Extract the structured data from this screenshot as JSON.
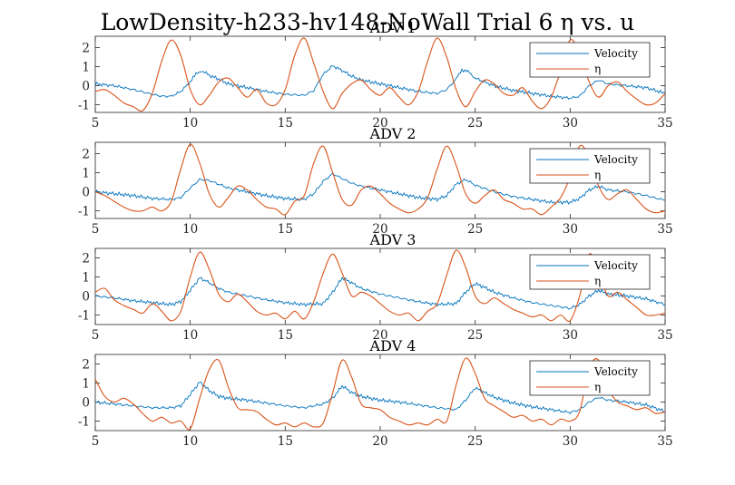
{
  "figure": {
    "title": "LowDensity-h233-hv148-NoWall Trial 6 η vs. u"
  },
  "colors": {
    "velocity": "#0072BD",
    "eta": "#D95319",
    "axis": "#262626"
  },
  "chart_data": [
    {
      "type": "line",
      "title": "ADV 1",
      "xlim": [
        5,
        35
      ],
      "ylim": [
        -1.4,
        2.6
      ],
      "xticks": [
        5,
        10,
        15,
        20,
        25,
        30,
        35
      ],
      "yticks": [
        -1,
        0,
        1,
        2
      ],
      "legend": {
        "placement": "top-right",
        "entries": [
          "Velocity",
          "η"
        ]
      },
      "series": [
        {
          "name": "Velocity",
          "x": [
            5,
            6,
            7,
            8,
            8.5,
            9,
            9.5,
            10,
            10.3,
            10.6,
            11,
            11.5,
            12,
            13,
            14,
            15,
            16,
            16.5,
            17,
            17.5,
            18,
            18.5,
            19,
            20,
            21,
            22,
            23,
            23.5,
            24,
            24.3,
            24.7,
            25,
            26,
            27,
            28,
            29,
            30,
            30.5,
            31,
            31.5,
            32,
            33,
            34,
            35
          ],
          "y": [
            0.1,
            0.0,
            -0.2,
            -0.45,
            -0.55,
            -0.55,
            -0.3,
            0.2,
            0.6,
            0.8,
            0.55,
            0.35,
            0.1,
            -0.1,
            -0.3,
            -0.45,
            -0.5,
            -0.25,
            0.6,
            1.05,
            0.8,
            0.5,
            0.3,
            0.1,
            -0.1,
            -0.3,
            -0.4,
            -0.2,
            0.35,
            0.85,
            0.7,
            0.4,
            0.0,
            -0.25,
            -0.4,
            -0.55,
            -0.65,
            -0.55,
            0.0,
            0.3,
            0.1,
            0.0,
            -0.1,
            -0.4
          ]
        },
        {
          "name": "η",
          "x": [
            5,
            5.5,
            6,
            6.5,
            7,
            7.5,
            8,
            8.5,
            9,
            9.5,
            10,
            10.5,
            11,
            11.5,
            12,
            12.5,
            13,
            13.5,
            14,
            14.5,
            15,
            15.5,
            16,
            16.5,
            17,
            17.5,
            18,
            18.5,
            19,
            19.5,
            20,
            20.5,
            21,
            21.5,
            22,
            22.5,
            23,
            23.5,
            24,
            24.5,
            25,
            25.5,
            26,
            26.5,
            27,
            27.5,
            28,
            28.5,
            29,
            29.5,
            30,
            30.5,
            31,
            31.5,
            32,
            32.5,
            33,
            33.5,
            34,
            34.5,
            35
          ],
          "y": [
            -0.3,
            -0.2,
            -0.5,
            -0.9,
            -1.1,
            -1.3,
            -0.4,
            1.3,
            2.4,
            1.6,
            -0.2,
            -1.0,
            -0.5,
            0.2,
            0.4,
            -0.1,
            -0.6,
            -0.2,
            -0.9,
            -1.0,
            -0.2,
            1.6,
            2.5,
            1.2,
            -0.3,
            -1.2,
            -0.4,
            0.1,
            0.3,
            -0.2,
            -0.5,
            -0.1,
            -0.6,
            -1.0,
            -0.3,
            1.3,
            2.5,
            1.5,
            -0.2,
            -1.1,
            -0.3,
            0.3,
            0.1,
            -0.4,
            -0.5,
            -0.1,
            -0.8,
            -1.2,
            -0.6,
            0.8,
            2.4,
            1.7,
            0.2,
            -0.6,
            0.0,
            0.2,
            -0.3,
            -0.7,
            -1.0,
            -0.9,
            -0.4
          ]
        }
      ]
    },
    {
      "type": "line",
      "title": "ADV 2",
      "xlim": [
        5,
        35
      ],
      "ylim": [
        -1.4,
        2.6
      ],
      "xticks": [
        5,
        10,
        15,
        20,
        25,
        30,
        35
      ],
      "yticks": [
        -1,
        0,
        1,
        2
      ],
      "legend": {
        "placement": "top-right",
        "entries": [
          "Velocity",
          "η"
        ]
      },
      "series": [
        {
          "name": "Velocity",
          "x": [
            5,
            6,
            7,
            8,
            9,
            9.5,
            10,
            10.5,
            11,
            11.5,
            12,
            13,
            14,
            15,
            16,
            16.5,
            17,
            17.5,
            18,
            18.5,
            19,
            20,
            21,
            22,
            23,
            23.5,
            24,
            24.5,
            25,
            26,
            27,
            28,
            29,
            30,
            30.5,
            31,
            31.5,
            32,
            33,
            34,
            35
          ],
          "y": [
            0.0,
            -0.1,
            -0.2,
            -0.35,
            -0.4,
            -0.3,
            0.2,
            0.65,
            0.6,
            0.4,
            0.2,
            0.0,
            -0.2,
            -0.35,
            -0.4,
            -0.1,
            0.55,
            0.95,
            0.7,
            0.45,
            0.3,
            0.1,
            -0.1,
            -0.3,
            -0.4,
            -0.2,
            0.4,
            0.65,
            0.35,
            0.0,
            -0.25,
            -0.4,
            -0.55,
            -0.55,
            -0.35,
            0.1,
            0.3,
            0.1,
            0.0,
            -0.2,
            -0.45
          ]
        },
        {
          "name": "η",
          "x": [
            5,
            5.5,
            6,
            6.5,
            7,
            7.5,
            8,
            8.5,
            9,
            9.5,
            10,
            10.5,
            11,
            11.5,
            12,
            12.5,
            13,
            13.5,
            14,
            14.5,
            15,
            15.5,
            16,
            16.5,
            17,
            17.5,
            18,
            18.5,
            19,
            19.5,
            20,
            20.5,
            21,
            21.5,
            22,
            22.5,
            23,
            23.5,
            24,
            24.5,
            25,
            25.5,
            26,
            26.5,
            27,
            27.5,
            28,
            28.5,
            29,
            29.5,
            30,
            30.5,
            31,
            31.5,
            32,
            32.5,
            33,
            33.5,
            34,
            34.5,
            35
          ],
          "y": [
            0.0,
            -0.2,
            -0.5,
            -0.8,
            -1.0,
            -1.0,
            -0.8,
            -1.0,
            -0.5,
            1.2,
            2.5,
            1.5,
            -0.1,
            -0.8,
            -0.3,
            0.3,
            0.1,
            -0.4,
            -0.8,
            -0.9,
            -1.2,
            -0.5,
            -0.2,
            1.5,
            2.4,
            1.0,
            -0.4,
            -0.7,
            0.1,
            0.3,
            -0.1,
            -0.6,
            -0.9,
            -1.1,
            -0.9,
            -0.3,
            1.2,
            2.4,
            1.4,
            -0.1,
            -0.6,
            -0.2,
            0.1,
            -0.4,
            -0.6,
            -0.9,
            -0.9,
            -1.2,
            -0.8,
            -0.3,
            0.8,
            2.4,
            1.8,
            0.3,
            -0.4,
            -0.1,
            0.1,
            -0.4,
            -0.9,
            -1.1,
            -1.0
          ]
        }
      ]
    },
    {
      "type": "line",
      "title": "ADV 3",
      "xlim": [
        5,
        35
      ],
      "ylim": [
        -1.5,
        2.5
      ],
      "xticks": [
        5,
        10,
        15,
        20,
        25,
        30,
        35
      ],
      "yticks": [
        -1,
        0,
        1,
        2
      ],
      "legend": {
        "placement": "top-right",
        "entries": [
          "Velocity",
          "η"
        ]
      },
      "series": [
        {
          "name": "Velocity",
          "x": [
            5,
            6,
            7,
            8,
            9,
            9.5,
            10,
            10.5,
            11,
            11.5,
            12,
            13,
            14,
            15,
            16,
            17,
            17.5,
            18,
            18.5,
            19,
            20,
            21,
            22,
            23,
            24,
            24.5,
            25,
            25.5,
            26,
            27,
            28,
            29,
            30,
            30.5,
            31,
            31.5,
            32,
            33,
            34,
            35
          ],
          "y": [
            0.0,
            -0.1,
            -0.25,
            -0.35,
            -0.45,
            -0.3,
            0.3,
            0.95,
            0.7,
            0.4,
            0.2,
            0.0,
            -0.2,
            -0.35,
            -0.45,
            -0.4,
            0.2,
            0.95,
            0.7,
            0.4,
            0.1,
            -0.1,
            -0.3,
            -0.45,
            -0.4,
            0.2,
            0.65,
            0.45,
            0.2,
            -0.1,
            -0.35,
            -0.5,
            -0.65,
            -0.45,
            0.0,
            0.3,
            0.1,
            0.0,
            -0.15,
            -0.45
          ]
        },
        {
          "name": "η",
          "x": [
            5,
            5.5,
            6,
            6.5,
            7,
            7.5,
            8,
            8.5,
            9,
            9.5,
            10,
            10.5,
            11,
            11.5,
            12,
            12.5,
            13,
            13.5,
            14,
            14.5,
            15,
            15.5,
            16,
            16.5,
            17,
            17.5,
            18,
            18.5,
            19,
            19.5,
            20,
            20.5,
            21,
            21.5,
            22,
            22.5,
            23,
            23.5,
            24,
            24.5,
            25,
            25.5,
            26,
            26.5,
            27,
            27.5,
            28,
            28.5,
            29,
            29.5,
            30,
            30.5,
            31,
            31.5,
            32,
            32.5,
            33,
            33.5,
            34,
            34.5,
            35
          ],
          "y": [
            0.2,
            0.4,
            -0.2,
            -0.5,
            -0.7,
            -0.9,
            -0.4,
            -0.8,
            -1.3,
            -0.8,
            1.0,
            2.3,
            1.4,
            0.1,
            -0.3,
            0.1,
            -0.3,
            -0.8,
            -1.0,
            -0.9,
            -1.2,
            -0.8,
            -1.2,
            -0.3,
            1.2,
            2.2,
            1.2,
            0.0,
            0.2,
            0.0,
            -0.4,
            -0.8,
            -1.0,
            -0.9,
            -1.3,
            -0.8,
            -0.4,
            1.1,
            2.4,
            1.5,
            0.0,
            -0.4,
            -0.1,
            -0.4,
            -0.7,
            -0.9,
            -1.1,
            -1.0,
            -1.3,
            -1.0,
            -1.3,
            0.0,
            2.2,
            1.2,
            0.0,
            0.2,
            -0.2,
            -0.6,
            -1.0,
            -1.0,
            -0.9
          ]
        }
      ]
    },
    {
      "type": "line",
      "title": "ADV 4",
      "xlim": [
        5,
        35
      ],
      "ylim": [
        -1.5,
        2.5
      ],
      "xticks": [
        5,
        10,
        15,
        20,
        25,
        30,
        35
      ],
      "yticks": [
        -1,
        0,
        1,
        2
      ],
      "legend": {
        "placement": "top-right",
        "entries": [
          "Velocity",
          "η"
        ]
      },
      "series": [
        {
          "name": "Velocity",
          "x": [
            5,
            6,
            7,
            8,
            9,
            9.5,
            10,
            10.5,
            11,
            11.5,
            12,
            13,
            14,
            15,
            16,
            17,
            17.5,
            18,
            18.5,
            19,
            20,
            21,
            22,
            23,
            24,
            24.5,
            25,
            25.5,
            26,
            27,
            28,
            29,
            30,
            30.5,
            31,
            31.5,
            32,
            33,
            34,
            35
          ],
          "y": [
            0.0,
            -0.1,
            -0.2,
            -0.3,
            -0.3,
            -0.2,
            0.4,
            1.05,
            0.6,
            0.3,
            0.2,
            0.1,
            -0.05,
            -0.2,
            -0.3,
            -0.1,
            0.2,
            0.85,
            0.5,
            0.3,
            0.1,
            0.0,
            -0.15,
            -0.3,
            -0.4,
            0.1,
            0.75,
            0.5,
            0.25,
            -0.05,
            -0.25,
            -0.4,
            -0.55,
            -0.4,
            0.0,
            0.25,
            0.1,
            0.0,
            -0.15,
            -0.5
          ]
        },
        {
          "name": "η",
          "x": [
            5,
            5.5,
            6,
            6.5,
            7,
            7.5,
            8,
            8.5,
            9,
            9.5,
            10,
            10.5,
            11,
            11.5,
            12,
            12.5,
            13,
            13.5,
            14,
            14.5,
            15,
            15.5,
            16,
            16.5,
            17,
            17.5,
            18,
            18.5,
            19,
            19.5,
            20,
            20.5,
            21,
            21.5,
            22,
            22.5,
            23,
            23.5,
            24,
            24.5,
            25,
            25.5,
            26,
            26.5,
            27,
            27.5,
            28,
            28.5,
            29,
            29.5,
            30,
            30.5,
            31,
            31.5,
            32,
            32.5,
            33,
            33.5,
            34,
            34.5,
            35
          ],
          "y": [
            1.2,
            0.3,
            0.0,
            0.2,
            -0.1,
            -0.6,
            -1.0,
            -0.8,
            -1.1,
            -1.0,
            -1.4,
            0.2,
            1.7,
            2.2,
            0.8,
            -0.3,
            -0.4,
            -0.5,
            -0.9,
            -1.2,
            -1.1,
            -1.3,
            -1.1,
            -1.3,
            -1.1,
            0.5,
            2.2,
            1.3,
            -0.1,
            -0.3,
            -0.4,
            -0.8,
            -1.0,
            -1.2,
            -1.1,
            -1.2,
            -0.9,
            -1.0,
            0.9,
            2.3,
            1.5,
            0.2,
            -0.2,
            -0.5,
            -0.8,
            -0.7,
            -1.0,
            -0.9,
            -1.2,
            -0.9,
            -1.0,
            -0.5,
            1.8,
            2.2,
            0.7,
            0.0,
            -0.2,
            -0.4,
            -0.3,
            -0.6,
            -0.5
          ]
        }
      ]
    }
  ]
}
